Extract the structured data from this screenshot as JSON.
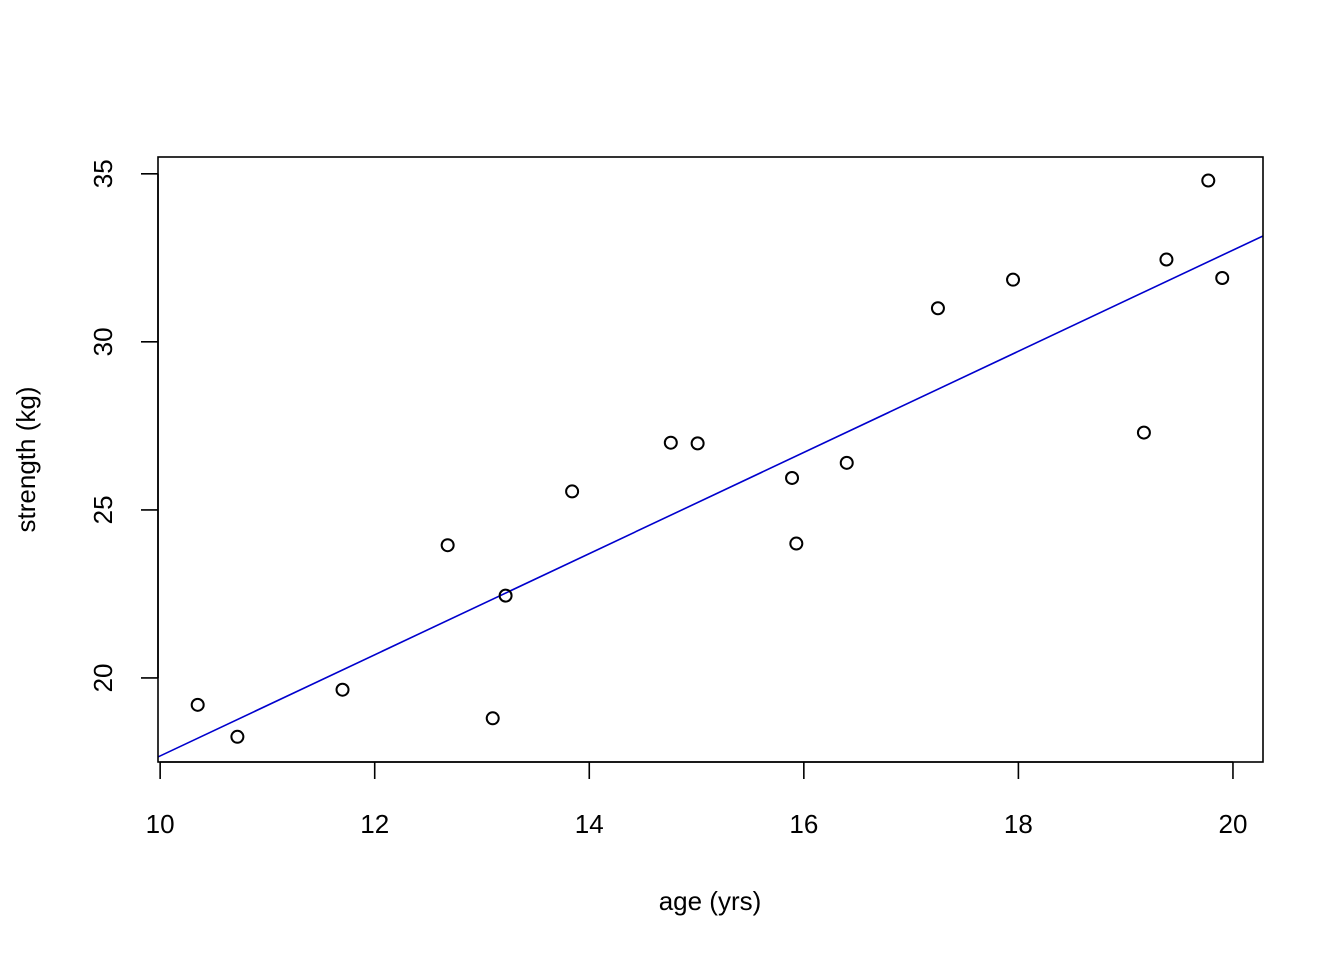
{
  "chart_data": {
    "type": "scatter",
    "title": "",
    "xlabel": "age (yrs)",
    "ylabel": "strength (kg)",
    "xlim": [
      9.98,
      20.28
    ],
    "ylim": [
      17.5,
      35.5
    ],
    "xticks": [
      10,
      12,
      14,
      16,
      18,
      20
    ],
    "yticks": [
      20,
      25,
      30,
      35
    ],
    "grid": false,
    "point_color": "#000000",
    "fit_color": "#0000CD",
    "points": [
      {
        "x": 10.35,
        "y": 19.2
      },
      {
        "x": 10.72,
        "y": 18.25
      },
      {
        "x": 11.7,
        "y": 19.65
      },
      {
        "x": 12.68,
        "y": 23.95
      },
      {
        "x": 13.1,
        "y": 18.8
      },
      {
        "x": 13.22,
        "y": 22.45
      },
      {
        "x": 13.84,
        "y": 25.55
      },
      {
        "x": 14.76,
        "y": 27.0
      },
      {
        "x": 15.01,
        "y": 26.98
      },
      {
        "x": 15.89,
        "y": 25.95
      },
      {
        "x": 15.93,
        "y": 24.0
      },
      {
        "x": 16.4,
        "y": 26.4
      },
      {
        "x": 17.25,
        "y": 31.0
      },
      {
        "x": 17.95,
        "y": 31.85
      },
      {
        "x": 19.17,
        "y": 27.3
      },
      {
        "x": 19.38,
        "y": 32.45
      },
      {
        "x": 19.77,
        "y": 34.8
      },
      {
        "x": 19.9,
        "y": 31.9
      }
    ],
    "fit_line": {
      "intercept": 2.63,
      "slope": 1.505
    }
  }
}
